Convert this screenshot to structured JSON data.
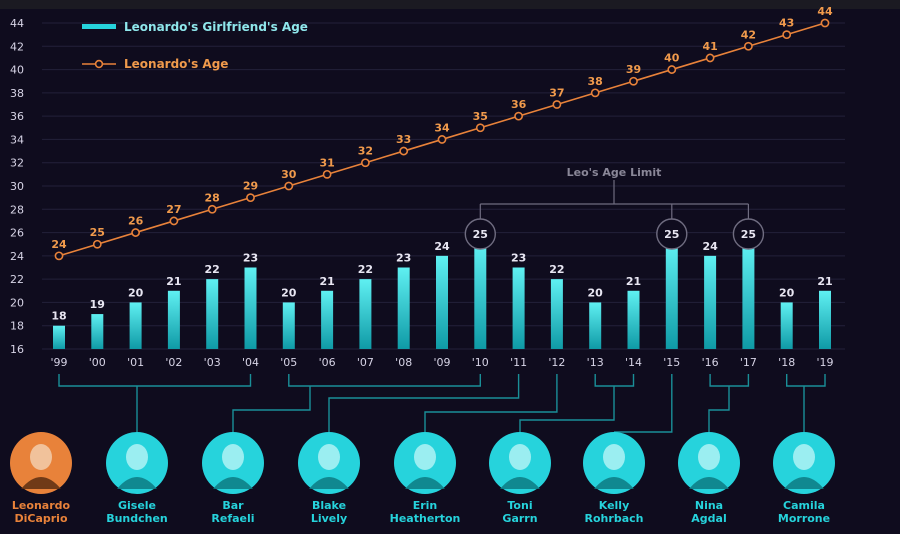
{
  "chart_data": {
    "type": "bar",
    "categories": [
      "'99",
      "'00",
      "'01",
      "'02",
      "'03",
      "'04",
      "'05",
      "'06",
      "'07",
      "'08",
      "'09",
      "'10",
      "'11",
      "'12",
      "'13",
      "'14",
      "'15",
      "'16",
      "'17",
      "'18",
      "'19"
    ],
    "series": [
      {
        "name": "Leonardo's Girlfriend's Age",
        "type": "bar",
        "color": "#26d3dc",
        "values": [
          18,
          19,
          20,
          21,
          22,
          23,
          20,
          21,
          22,
          23,
          24,
          25,
          23,
          22,
          20,
          21,
          25,
          24,
          25,
          20,
          21
        ]
      },
      {
        "name": "Leonardo's Age",
        "type": "line",
        "color": "#e8823a",
        "values": [
          24,
          25,
          26,
          27,
          28,
          29,
          30,
          31,
          32,
          33,
          34,
          35,
          36,
          37,
          38,
          39,
          40,
          41,
          42,
          43,
          44
        ]
      }
    ],
    "ylim": [
      16,
      44
    ],
    "yticks": [
      16,
      18,
      20,
      22,
      24,
      26,
      28,
      30,
      32,
      34,
      36,
      38,
      40,
      42,
      44
    ],
    "legend_position": "top-left",
    "grid": true,
    "annotation": {
      "text": "Leo's Age Limit",
      "highlighted_values": [
        25
      ]
    }
  },
  "people": [
    {
      "name_line1": "Leonardo",
      "name_line2": "DiCaprio",
      "color": "#e8823a",
      "years": []
    },
    {
      "name_line1": "Gisele",
      "name_line2": "Bundchen",
      "color": "#26d3dc",
      "years": [
        "'99",
        "'04"
      ]
    },
    {
      "name_line1": "Bar",
      "name_line2": "Refaeli",
      "color": "#26d3dc",
      "years": [
        "'05",
        "'10"
      ]
    },
    {
      "name_line1": "Blake",
      "name_line2": "Lively",
      "color": "#26d3dc",
      "years": [
        "'11"
      ]
    },
    {
      "name_line1": "Erin",
      "name_line2": "Heatherton",
      "color": "#26d3dc",
      "years": [
        "'12"
      ]
    },
    {
      "name_line1": "Toni",
      "name_line2": "Garrn",
      "color": "#26d3dc",
      "years": [
        "'13",
        "'14"
      ]
    },
    {
      "name_line1": "Kelly",
      "name_line2": "Rohrbach",
      "color": "#26d3dc",
      "years": [
        "'15"
      ]
    },
    {
      "name_line1": "Nina",
      "name_line2": "Agdal",
      "color": "#26d3dc",
      "years": [
        "'16",
        "'17"
      ]
    },
    {
      "name_line1": "Camila",
      "name_line2": "Morrone",
      "color": "#26d3dc",
      "years": [
        "'18",
        "'19"
      ]
    }
  ]
}
